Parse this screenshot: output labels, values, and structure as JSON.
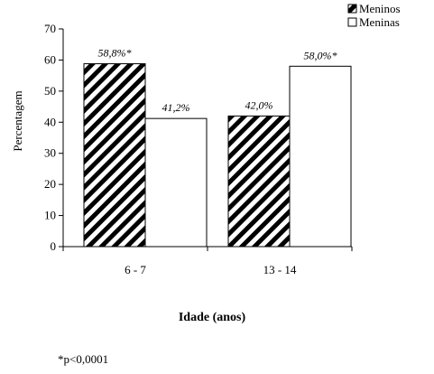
{
  "chart_data": {
    "type": "bar",
    "categories": [
      "6 - 7",
      "13 - 14"
    ],
    "series": [
      {
        "name": "Meninos",
        "values": [
          58.8,
          42.0
        ],
        "labels": [
          "58,8%*",
          "42,0%"
        ],
        "fill": "hatched"
      },
      {
        "name": "Meninas",
        "values": [
          41.2,
          58.0
        ],
        "labels": [
          "41,2%",
          "58,0%*"
        ],
        "fill": "#ffffff"
      }
    ],
    "xlabel": "Idade (anos)",
    "ylabel": "Percentagem",
    "ylim": [
      0,
      70
    ],
    "yticks": [
      0,
      10,
      20,
      30,
      40,
      50,
      60,
      70
    ],
    "legend_position": "top-right",
    "grid": false
  },
  "footnote": "*p<0,0001"
}
